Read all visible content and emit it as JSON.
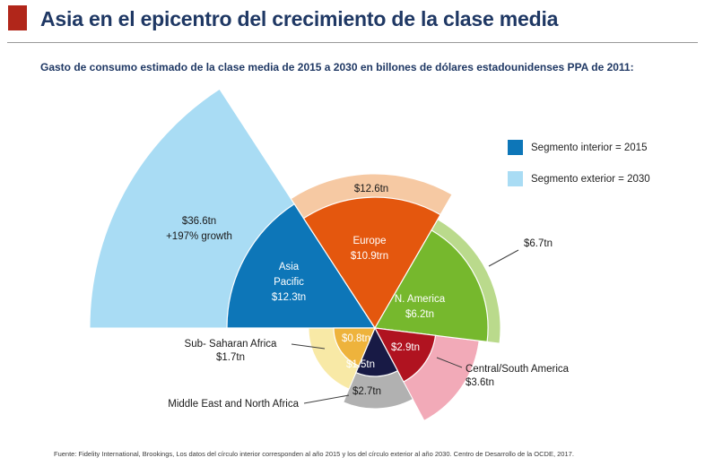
{
  "header": {
    "title": "Asia en el epicentro del crecimiento de la clase media",
    "accent_color": "#b1261a"
  },
  "footer": "Fuente: Fidelity International, Brookings, Los datos del círculo interior corresponden al año 2015 y los del círculo exterior al año 2030. Centro de Desarrollo de la OCDE, 2017.",
  "chart_data": {
    "type": "pie",
    "variant": "two-ring radial wedges (inner ring = 2015, outer ring = 2030)",
    "title": "Gasto de consumo estimado de la clase media de 2015 a 2030 en billones de dólares estadounidenses PPA de 2011:",
    "units": "$tn (billones de dólares estadounidenses PPA de 2011)",
    "rings": {
      "inner": "2015",
      "outer": "2030"
    },
    "legend": [
      {
        "label": "Segmento interior = 2015",
        "color": "#0d76b8"
      },
      {
        "label": "Segmento exterior = 2030",
        "color": "#a9dcf4"
      }
    ],
    "segments": [
      {
        "name": "Asia Pacific",
        "value_2015": 12.3,
        "value_2030": 36.6,
        "growth": "+197%",
        "color_2015": "#0d76b8",
        "color_2030": "#a9dcf4",
        "inner_label": [
          "Asia",
          "Pacific",
          "$12.3tn"
        ],
        "outer_label": [
          "$36.6tn",
          "+197% growth"
        ]
      },
      {
        "name": "Europe",
        "value_2015": 10.9,
        "value_2030": 12.6,
        "color_2015": "#e4570e",
        "color_2030": "#f6c9a3",
        "inner_label": [
          "Europe",
          "$10.9trn"
        ],
        "outer_label": [
          "$12.6tn"
        ]
      },
      {
        "name": "N. America",
        "value_2015": 6.2,
        "value_2030": 6.7,
        "color_2015": "#76b82d",
        "color_2030": "#bada8c",
        "inner_label": [
          "N. America",
          "$6.2tn"
        ],
        "callout": [
          "$6.7tn"
        ]
      },
      {
        "name": "Central/South America",
        "value_2015": 2.9,
        "value_2030": 3.6,
        "color_2015": "#b01320",
        "color_2030": "#f2aab8",
        "inner_label": [
          "$2.9tn"
        ],
        "callout": [
          "Central/South America",
          "$3.6tn"
        ]
      },
      {
        "name": "Middle East and North Africa",
        "value_2015": 1.5,
        "value_2030": 2.7,
        "color_2015": "#181a45",
        "color_2030": "#b1b1b1",
        "inner_label": [
          "$1.5tn"
        ],
        "outer_label": [
          "$2.7tn"
        ],
        "callout": [
          "Middle East and North Africa"
        ]
      },
      {
        "name": "Sub- Saharan Africa",
        "value_2015": 0.8,
        "value_2030": 1.7,
        "color_2015": "#eeb33c",
        "color_2030": "#f8e9a6",
        "inner_label": [
          "$0.8tn"
        ],
        "callout": [
          "Sub- Saharan Africa",
          "$1.7tn"
        ]
      }
    ]
  }
}
